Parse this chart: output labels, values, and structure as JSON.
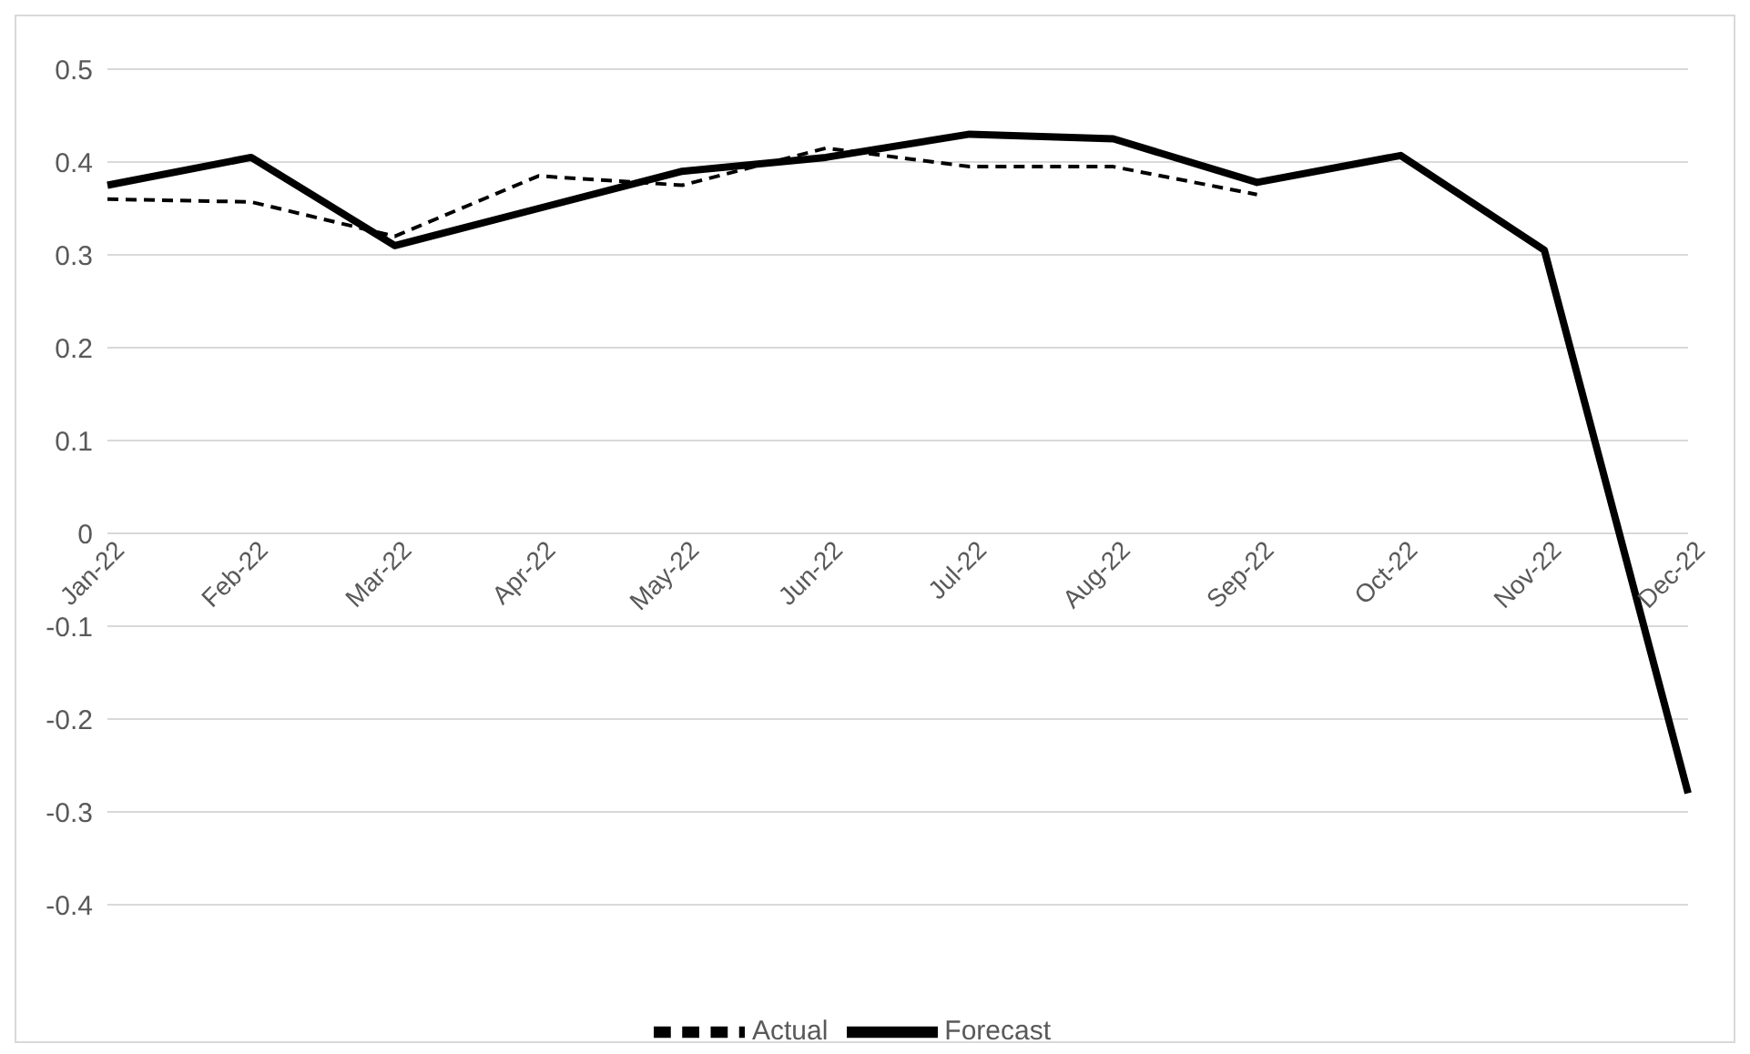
{
  "chart_data": {
    "type": "line",
    "categories": [
      "Jan-22",
      "Feb-22",
      "Mar-22",
      "Apr-22",
      "May-22",
      "Jun-22",
      "Jul-22",
      "Aug-22",
      "Sep-22",
      "Oct-22",
      "Nov-22",
      "Dec-22"
    ],
    "series": [
      {
        "name": "Actual",
        "color": "#000000",
        "line_style": "dashed",
        "values": [
          0.36,
          0.357,
          0.32,
          0.385,
          0.375,
          0.415,
          0.395,
          0.395,
          0.365,
          null,
          null,
          null
        ]
      },
      {
        "name": "Forecast",
        "color": "#000000",
        "line_style": "solid",
        "values": [
          0.375,
          0.405,
          0.31,
          0.35,
          0.39,
          0.405,
          0.43,
          0.425,
          0.378,
          0.407,
          0.305,
          -0.28
        ]
      }
    ],
    "ylim": [
      -0.4,
      0.5
    ],
    "yticks": [
      -0.4,
      -0.3,
      -0.2,
      -0.1,
      0,
      0.1,
      0.2,
      0.3,
      0.4,
      0.5
    ],
    "grid": "y",
    "legend": "bottom",
    "marker": "none"
  }
}
